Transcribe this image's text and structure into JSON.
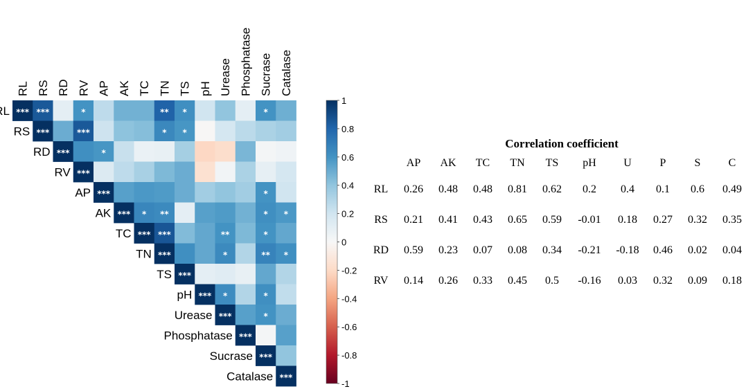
{
  "chart_data": [
    {
      "type": "heatmap",
      "variables": [
        "RL",
        "RS",
        "RD",
        "RV",
        "AP",
        "AK",
        "TC",
        "TN",
        "TS",
        "pH",
        "Urease",
        "Phosphatase",
        "Sucrase",
        "Catalase"
      ],
      "layout": "upper-triangle",
      "colorbar": {
        "min": -1,
        "max": 1,
        "ticks": [
          "1",
          "0.8",
          "0.6",
          "0.4",
          "0.2",
          "0",
          "-0.2",
          "-0.4",
          "-0.6",
          "-0.8",
          "-1"
        ],
        "low_color": "#67001f",
        "mid_color": "#f7f7f7",
        "high_color": "#053061"
      },
      "cells": [
        [
          "1",
          "0.26",
          "0.48",
          "0.48",
          "0.81",
          "0.62",
          "0.2",
          "0.4",
          "0.1",
          "0.6",
          "0.49"
        ],
        [
          "",
          "0.21",
          "0.41",
          "0.43",
          "0.65",
          "0.59",
          "-0.01",
          "0.18",
          "0.27",
          "0.32",
          "0.35"
        ]
      ],
      "matrix": [
        [
          1.0,
          0.85,
          0.1,
          0.6,
          0.26,
          0.48,
          0.48,
          0.81,
          0.62,
          0.2,
          0.4,
          0.1,
          0.6,
          0.49
        ],
        [
          null,
          1.0,
          0.5,
          0.85,
          0.21,
          0.41,
          0.43,
          0.65,
          0.59,
          -0.01,
          0.18,
          0.27,
          0.32,
          0.35
        ],
        [
          null,
          null,
          1.0,
          0.62,
          0.59,
          0.23,
          0.07,
          0.08,
          0.34,
          -0.21,
          -0.18,
          0.46,
          0.02,
          0.04
        ],
        [
          null,
          null,
          null,
          1.0,
          0.14,
          0.26,
          0.33,
          0.45,
          0.5,
          -0.16,
          0.03,
          0.32,
          0.09,
          0.18
        ],
        [
          null,
          null,
          null,
          null,
          1.0,
          0.55,
          0.58,
          0.57,
          0.5,
          0.35,
          0.4,
          0.35,
          0.6,
          0.2
        ],
        [
          null,
          null,
          null,
          null,
          null,
          1.0,
          0.66,
          0.64,
          0.1,
          0.55,
          0.57,
          0.48,
          0.62,
          0.58
        ],
        [
          null,
          null,
          null,
          null,
          null,
          null,
          1.0,
          0.86,
          0.44,
          0.52,
          0.6,
          0.45,
          0.6,
          0.52
        ],
        [
          null,
          null,
          null,
          null,
          null,
          null,
          null,
          1.0,
          0.62,
          0.52,
          0.64,
          0.3,
          0.67,
          0.62
        ],
        [
          null,
          null,
          null,
          null,
          null,
          null,
          null,
          null,
          1.0,
          0.1,
          0.12,
          0.08,
          0.52,
          0.3
        ],
        [
          null,
          null,
          null,
          null,
          null,
          null,
          null,
          null,
          null,
          1.0,
          0.63,
          0.3,
          0.62,
          0.25
        ],
        [
          null,
          null,
          null,
          null,
          null,
          null,
          null,
          null,
          null,
          null,
          1.0,
          0.55,
          0.6,
          0.5
        ],
        [
          null,
          null,
          null,
          null,
          null,
          null,
          null,
          null,
          null,
          null,
          null,
          1.0,
          0.02,
          0.55
        ],
        [
          null,
          null,
          null,
          null,
          null,
          null,
          null,
          null,
          null,
          null,
          null,
          null,
          1.0,
          0.4
        ],
        [
          null,
          null,
          null,
          null,
          null,
          null,
          null,
          null,
          null,
          null,
          null,
          null,
          null,
          1.0
        ]
      ],
      "significance": [
        [
          "***",
          "***",
          "",
          "*",
          "",
          "",
          "",
          "**",
          "*",
          "",
          "",
          "",
          "*",
          ""
        ],
        [
          null,
          "***",
          "",
          "***",
          "",
          "",
          "",
          "*",
          "*",
          "",
          "",
          "",
          "",
          ""
        ],
        [
          null,
          null,
          "***",
          "",
          "*",
          "",
          "",
          "",
          "",
          "",
          "",
          "",
          "",
          ""
        ],
        [
          null,
          null,
          null,
          "***",
          "",
          "",
          "",
          "",
          "",
          "",
          "",
          "",
          "",
          ""
        ],
        [
          null,
          null,
          null,
          null,
          "***",
          "",
          "",
          "",
          "",
          "",
          "",
          "",
          "*",
          ""
        ],
        [
          null,
          null,
          null,
          null,
          null,
          "***",
          "*",
          "**",
          "",
          "",
          "",
          "",
          "*",
          "*"
        ],
        [
          null,
          null,
          null,
          null,
          null,
          null,
          "***",
          "***",
          "",
          "",
          "**",
          "",
          "*",
          ""
        ],
        [
          null,
          null,
          null,
          null,
          null,
          null,
          null,
          "***",
          "",
          "",
          "*",
          "",
          "**",
          "*"
        ],
        [
          null,
          null,
          null,
          null,
          null,
          null,
          null,
          null,
          "***",
          "",
          "",
          "",
          "",
          ""
        ],
        [
          null,
          null,
          null,
          null,
          null,
          null,
          null,
          null,
          null,
          "***",
          "*",
          "",
          "*",
          ""
        ],
        [
          null,
          null,
          null,
          null,
          null,
          null,
          null,
          null,
          null,
          null,
          "***",
          "",
          "*",
          ""
        ],
        [
          null,
          null,
          null,
          null,
          null,
          null,
          null,
          null,
          null,
          null,
          null,
          "***",
          "",
          ""
        ],
        [
          null,
          null,
          null,
          null,
          null,
          null,
          null,
          null,
          null,
          null,
          null,
          null,
          "***",
          ""
        ],
        [
          null,
          null,
          null,
          null,
          null,
          null,
          null,
          null,
          null,
          null,
          null,
          null,
          null,
          "***"
        ]
      ]
    },
    {
      "type": "table",
      "title": "Correlation coefficient",
      "columns": [
        "AP",
        "AK",
        "TC",
        "TN",
        "TS",
        "pH",
        "U",
        "P",
        "S",
        "C"
      ],
      "rows": [
        {
          "label": "RL",
          "values": [
            "0.26",
            "0.48",
            "0.48",
            "0.81",
            "0.62",
            "0.2",
            "0.4",
            "0.1",
            "0.6",
            "0.49"
          ]
        },
        {
          "label": "RS",
          "values": [
            "0.21",
            "0.41",
            "0.43",
            "0.65",
            "0.59",
            "-0.01",
            "0.18",
            "0.27",
            "0.32",
            "0.35"
          ]
        },
        {
          "label": "RD",
          "values": [
            "0.59",
            "0.23",
            "0.07",
            "0.08",
            "0.34",
            "-0.21",
            "-0.18",
            "0.46",
            "0.02",
            "0.04"
          ]
        },
        {
          "label": "RV",
          "values": [
            "0.14",
            "0.26",
            "0.33",
            "0.45",
            "0.5",
            "-0.16",
            "0.03",
            "0.32",
            "0.09",
            "0.18"
          ]
        }
      ]
    }
  ]
}
